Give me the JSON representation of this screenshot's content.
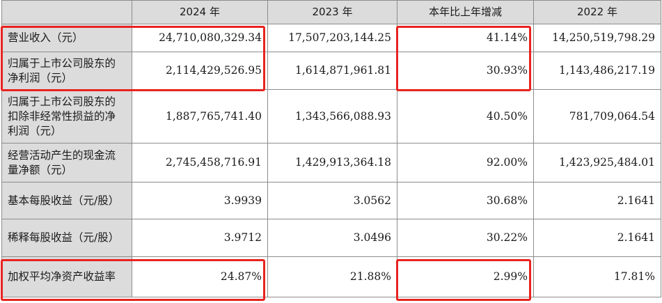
{
  "header": {
    "corner": "",
    "col_2024": "2024 年",
    "col_2023": "2023 年",
    "col_change": "本年比上年增减",
    "col_2022": "2022 年"
  },
  "rows": [
    {
      "label": "营业收入（元）",
      "v2024": "24,710,080,329.34",
      "v2023": "17,507,203,144.25",
      "change": "41.14%",
      "v2022": "14,250,519,798.29"
    },
    {
      "label": "归属于上市公司股东的净利润（元）",
      "v2024": "2,114,429,526.95",
      "v2023": "1,614,871,961.81",
      "change": "30.93%",
      "v2022": "1,143,486,217.19"
    },
    {
      "label": "归属于上市公司股东的扣除非经常性损益的净利润（元）",
      "v2024": "1,887,765,741.40",
      "v2023": "1,343,566,088.93",
      "change": "40.50%",
      "v2022": "781,709,064.54"
    },
    {
      "label": "经营活动产生的现金流量净额（元）",
      "v2024": "2,745,458,716.91",
      "v2023": "1,429,913,364.18",
      "change": "92.00%",
      "v2022": "1,423,925,484.01"
    },
    {
      "label": "基本每股收益（元/股）",
      "v2024": "3.9939",
      "v2023": "3.0562",
      "change": "30.68%",
      "v2022": "2.1641"
    },
    {
      "label": "稀释每股收益（元/股）",
      "v2024": "3.9712",
      "v2023": "3.0496",
      "change": "30.22%",
      "v2022": "2.1641"
    },
    {
      "label": "加权平均净资产收益率",
      "v2024": "24.87%",
      "v2023": "21.88%",
      "change": "2.99%",
      "v2022": "17.81%"
    }
  ],
  "highlight_color": "#e8231f"
}
